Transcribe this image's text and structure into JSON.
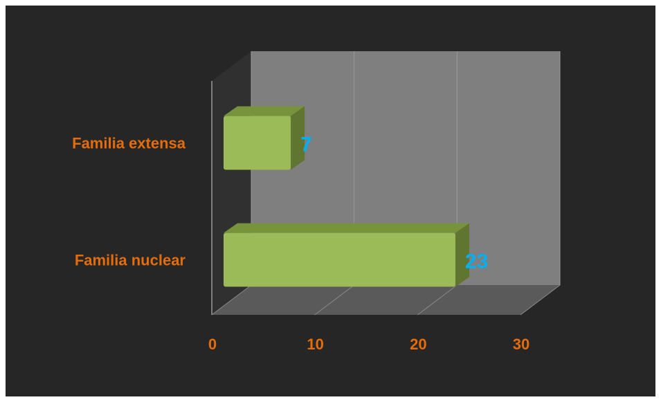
{
  "chart_data": {
    "type": "bar",
    "orientation": "horizontal",
    "style": "3d",
    "categories": [
      "Familia extensa",
      "Familia nuclear"
    ],
    "values": [
      7,
      23
    ],
    "title": "",
    "xlabel": "",
    "ylabel": "",
    "xlim": [
      0,
      30
    ],
    "xticks": [
      "0",
      "10",
      "20",
      "30"
    ],
    "data_labels": [
      "7",
      "23"
    ],
    "grid": true,
    "legend": "none"
  },
  "colors": {
    "background": "#262626",
    "back_wall": "#7f7f7f",
    "floor": "#5a5a5a",
    "bar_front": "#9bbb59",
    "bar_top": "#77933c",
    "bar_side": "#5f7530",
    "category_label": "#e46c0a",
    "tick_label": "#e46c0a",
    "data_label": "#00b0f0",
    "gridline": "#9a9a9a"
  }
}
